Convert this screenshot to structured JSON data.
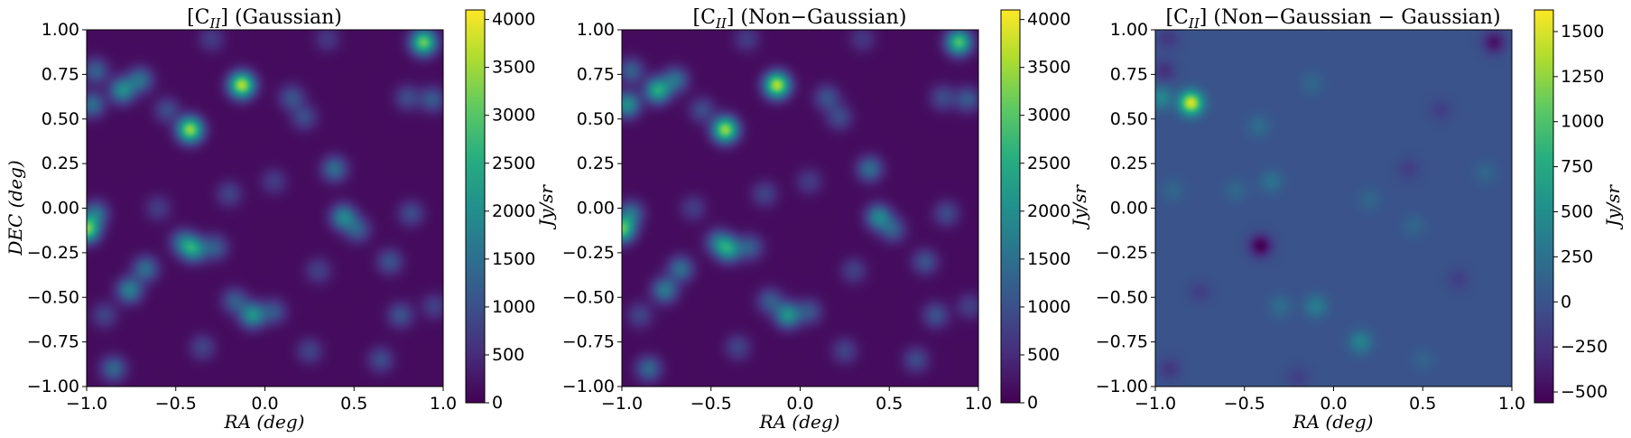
{
  "figure": {
    "panels": [
      {
        "title_main": "[C",
        "title_sub": "II",
        "title_rest": "] (Gaussian)",
        "xlabel": "RA (deg)",
        "ylabel": "DEC (deg)",
        "cbar_label": "Jy/sr"
      },
      {
        "title_main": "[C",
        "title_sub": "II",
        "title_rest": "] (Non−Gaussian)",
        "xlabel": "RA (deg)",
        "ylabel": "",
        "cbar_label": "Jy/sr"
      },
      {
        "title_main": "[C",
        "title_sub": "II",
        "title_rest": "] (Non−Gaussian − Gaussian)",
        "xlabel": "RA (deg)",
        "ylabel": "",
        "cbar_label": "Jy/sr"
      }
    ]
  },
  "chart_data": [
    {
      "type": "heatmap",
      "title": "[C_II] (Gaussian)",
      "xlabel": "RA (deg)",
      "ylabel": "DEC (deg)",
      "xlim": [
        -1.0,
        1.0
      ],
      "ylim": [
        -1.0,
        1.0
      ],
      "xticks": [
        -1.0,
        -0.5,
        0.0,
        0.5,
        1.0
      ],
      "xtick_labels": [
        "−1.0",
        "−0.5",
        "0.0",
        "0.5",
        "1.0"
      ],
      "yticks": [
        -1.0,
        -0.75,
        -0.5,
        -0.25,
        0.0,
        0.25,
        0.5,
        0.75,
        1.0
      ],
      "ytick_labels": [
        "−1.00",
        "−0.75",
        "−0.50",
        "−0.25",
        "0.00",
        "0.25",
        "0.50",
        "0.75",
        "1.00"
      ],
      "colormap": "viridis",
      "colorbar": {
        "label": "Jy/sr",
        "range": [
          0,
          4100
        ],
        "ticks": [
          0,
          500,
          1000,
          1500,
          2000,
          2500,
          3000,
          3500,
          4000
        ],
        "tick_labels": [
          "0",
          "500",
          "1000",
          "1500",
          "2000",
          "2500",
          "3000",
          "3500",
          "4000"
        ]
      },
      "background_value": 120,
      "blob_width": 0.05,
      "sources": [
        {
          "ra": -0.42,
          "dec": 0.44,
          "value": 3300
        },
        {
          "ra": -0.13,
          "dec": 0.69,
          "value": 3500
        },
        {
          "ra": 0.89,
          "dec": 0.93,
          "value": 3000
        },
        {
          "ra": -0.8,
          "dec": 0.66,
          "value": 1800
        },
        {
          "ra": -0.7,
          "dec": 0.72,
          "value": 1300
        },
        {
          "ra": -0.97,
          "dec": 0.58,
          "value": 1300
        },
        {
          "ra": -0.95,
          "dec": 0.77,
          "value": 1100
        },
        {
          "ra": -1.0,
          "dec": -0.12,
          "value": 3000
        },
        {
          "ra": -0.95,
          "dec": -0.03,
          "value": 1300
        },
        {
          "ra": -0.4,
          "dec": -0.23,
          "value": 1900
        },
        {
          "ra": -0.46,
          "dec": -0.19,
          "value": 1200
        },
        {
          "ra": -0.28,
          "dec": -0.22,
          "value": 1000
        },
        {
          "ra": -0.07,
          "dec": -0.6,
          "value": 1900
        },
        {
          "ra": -0.17,
          "dec": -0.52,
          "value": 1000
        },
        {
          "ra": 0.05,
          "dec": -0.58,
          "value": 900
        },
        {
          "ra": -0.76,
          "dec": -0.46,
          "value": 1600
        },
        {
          "ra": -0.67,
          "dec": -0.34,
          "value": 1300
        },
        {
          "ra": -0.85,
          "dec": -0.9,
          "value": 1200
        },
        {
          "ra": 0.44,
          "dec": -0.05,
          "value": 1700
        },
        {
          "ra": 0.39,
          "dec": 0.22,
          "value": 1300
        },
        {
          "ra": 0.52,
          "dec": -0.12,
          "value": 1000
        },
        {
          "ra": 0.94,
          "dec": 0.61,
          "value": 1000
        },
        {
          "ra": 0.8,
          "dec": 0.62,
          "value": 800
        },
        {
          "ra": 0.15,
          "dec": 0.62,
          "value": 900
        },
        {
          "ra": 0.22,
          "dec": 0.51,
          "value": 800
        },
        {
          "ra": -0.55,
          "dec": 0.55,
          "value": 800
        },
        {
          "ra": 0.7,
          "dec": -0.3,
          "value": 900
        },
        {
          "ra": 0.76,
          "dec": -0.6,
          "value": 900
        },
        {
          "ra": 0.82,
          "dec": -0.03,
          "value": 800
        },
        {
          "ra": 0.65,
          "dec": -0.85,
          "value": 800
        },
        {
          "ra": 0.25,
          "dec": -0.8,
          "value": 700
        },
        {
          "ra": -0.35,
          "dec": -0.78,
          "value": 700
        },
        {
          "ra": -0.2,
          "dec": 0.08,
          "value": 700
        },
        {
          "ra": 0.05,
          "dec": 0.15,
          "value": 600
        },
        {
          "ra": -0.9,
          "dec": -0.6,
          "value": 700
        },
        {
          "ra": -0.6,
          "dec": 0.0,
          "value": 600
        },
        {
          "ra": 0.3,
          "dec": -0.35,
          "value": 650
        },
        {
          "ra": 0.95,
          "dec": -0.55,
          "value": 650
        },
        {
          "ra": -0.3,
          "dec": 0.95,
          "value": 600
        },
        {
          "ra": 0.35,
          "dec": 0.95,
          "value": 550
        }
      ]
    },
    {
      "type": "heatmap",
      "title": "[C_II] (Non−Gaussian)",
      "xlabel": "RA (deg)",
      "ylabel": "",
      "xlim": [
        -1.0,
        1.0
      ],
      "ylim": [
        -1.0,
        1.0
      ],
      "xticks": [
        -1.0,
        -0.5,
        0.0,
        0.5,
        1.0
      ],
      "xtick_labels": [
        "−1.0",
        "−0.5",
        "0.0",
        "0.5",
        "1.0"
      ],
      "yticks": [
        -1.0,
        -0.75,
        -0.5,
        -0.25,
        0.0,
        0.25,
        0.5,
        0.75,
        1.0
      ],
      "ytick_labels": [
        "−1.00",
        "−0.75",
        "−0.50",
        "−0.25",
        "0.00",
        "0.25",
        "0.50",
        "0.75",
        "1.00"
      ],
      "colormap": "viridis",
      "colorbar": {
        "label": "Jy/sr",
        "range": [
          0,
          4100
        ],
        "ticks": [
          0,
          500,
          1000,
          1500,
          2000,
          2500,
          3000,
          3500,
          4000
        ],
        "tick_labels": [
          "0",
          "500",
          "1000",
          "1500",
          "2000",
          "2500",
          "3000",
          "3500",
          "4000"
        ]
      },
      "background_value": 120,
      "blob_width": 0.05,
      "sources": [
        {
          "ra": -0.42,
          "dec": 0.44,
          "value": 3300
        },
        {
          "ra": -0.13,
          "dec": 0.69,
          "value": 3500
        },
        {
          "ra": 0.89,
          "dec": 0.93,
          "value": 2800
        },
        {
          "ra": -0.8,
          "dec": 0.66,
          "value": 2300
        },
        {
          "ra": -0.7,
          "dec": 0.72,
          "value": 1300
        },
        {
          "ra": -0.97,
          "dec": 0.58,
          "value": 1900
        },
        {
          "ra": -0.95,
          "dec": 0.77,
          "value": 1100
        },
        {
          "ra": -1.0,
          "dec": -0.12,
          "value": 2800
        },
        {
          "ra": -0.95,
          "dec": -0.03,
          "value": 1300
        },
        {
          "ra": -0.4,
          "dec": -0.23,
          "value": 1900
        },
        {
          "ra": -0.46,
          "dec": -0.19,
          "value": 1200
        },
        {
          "ra": -0.28,
          "dec": -0.22,
          "value": 1000
        },
        {
          "ra": -0.07,
          "dec": -0.6,
          "value": 1900
        },
        {
          "ra": -0.17,
          "dec": -0.52,
          "value": 1000
        },
        {
          "ra": 0.05,
          "dec": -0.58,
          "value": 900
        },
        {
          "ra": -0.76,
          "dec": -0.46,
          "value": 1500
        },
        {
          "ra": -0.67,
          "dec": -0.34,
          "value": 1300
        },
        {
          "ra": -0.85,
          "dec": -0.9,
          "value": 1200
        },
        {
          "ra": 0.44,
          "dec": -0.05,
          "value": 1700
        },
        {
          "ra": 0.39,
          "dec": 0.22,
          "value": 1300
        },
        {
          "ra": 0.52,
          "dec": -0.12,
          "value": 1000
        },
        {
          "ra": 0.94,
          "dec": 0.61,
          "value": 1000
        },
        {
          "ra": 0.8,
          "dec": 0.62,
          "value": 800
        },
        {
          "ra": 0.15,
          "dec": 0.62,
          "value": 900
        },
        {
          "ra": 0.22,
          "dec": 0.51,
          "value": 800
        },
        {
          "ra": -0.55,
          "dec": 0.55,
          "value": 800
        },
        {
          "ra": 0.7,
          "dec": -0.3,
          "value": 900
        },
        {
          "ra": 0.76,
          "dec": -0.6,
          "value": 900
        },
        {
          "ra": 0.82,
          "dec": -0.03,
          "value": 800
        },
        {
          "ra": 0.65,
          "dec": -0.85,
          "value": 800
        },
        {
          "ra": 0.25,
          "dec": -0.8,
          "value": 700
        },
        {
          "ra": -0.35,
          "dec": -0.78,
          "value": 700
        },
        {
          "ra": -0.2,
          "dec": 0.08,
          "value": 700
        },
        {
          "ra": 0.05,
          "dec": 0.15,
          "value": 600
        },
        {
          "ra": -0.9,
          "dec": -0.6,
          "value": 700
        },
        {
          "ra": -0.6,
          "dec": 0.0,
          "value": 600
        },
        {
          "ra": 0.3,
          "dec": -0.35,
          "value": 650
        },
        {
          "ra": 0.95,
          "dec": -0.55,
          "value": 650
        },
        {
          "ra": -0.3,
          "dec": 0.95,
          "value": 600
        },
        {
          "ra": 0.35,
          "dec": 0.95,
          "value": 550
        }
      ]
    },
    {
      "type": "heatmap",
      "title": "[C_II] (Non−Gaussian − Gaussian)",
      "xlabel": "RA (deg)",
      "ylabel": "",
      "xlim": [
        -1.0,
        1.0
      ],
      "ylim": [
        -1.0,
        1.0
      ],
      "xticks": [
        -1.0,
        -0.5,
        0.0,
        0.5,
        1.0
      ],
      "xtick_labels": [
        "−1.0",
        "−0.5",
        "0.0",
        "0.5",
        "1.0"
      ],
      "yticks": [
        -1.0,
        -0.75,
        -0.5,
        -0.25,
        0.0,
        0.25,
        0.5,
        0.75,
        1.0
      ],
      "ytick_labels": [
        "−1.00",
        "−0.75",
        "−0.50",
        "−0.25",
        "0.00",
        "0.25",
        "0.50",
        "0.75",
        "1.00"
      ],
      "colormap": "viridis",
      "colorbar": {
        "label": "Jy/sr",
        "range": [
          -560,
          1620
        ],
        "ticks": [
          -500,
          -250,
          0,
          250,
          500,
          750,
          1000,
          1250,
          1500
        ],
        "tick_labels": [
          "−500",
          "−250",
          "0",
          "250",
          "500",
          "750",
          "1000",
          "1250",
          "1500"
        ]
      },
      "background_value": 0,
      "blob_width": 0.045,
      "sources": [
        {
          "ra": -0.8,
          "dec": 0.59,
          "value": 1500
        },
        {
          "ra": -0.97,
          "dec": 0.62,
          "value": 450
        },
        {
          "ra": -0.41,
          "dec": -0.21,
          "value": -560
        },
        {
          "ra": 0.9,
          "dec": 0.93,
          "value": -450
        },
        {
          "ra": -0.95,
          "dec": 0.77,
          "value": -250
        },
        {
          "ra": -0.93,
          "dec": 0.95,
          "value": -200
        },
        {
          "ra": -0.92,
          "dec": -0.9,
          "value": -200
        },
        {
          "ra": -0.75,
          "dec": -0.47,
          "value": -150
        },
        {
          "ra": -0.1,
          "dec": -0.55,
          "value": 350
        },
        {
          "ra": 0.15,
          "dec": -0.75,
          "value": 400
        },
        {
          "ra": -0.42,
          "dec": 0.46,
          "value": 200
        },
        {
          "ra": -0.35,
          "dec": 0.15,
          "value": 250
        },
        {
          "ra": -0.12,
          "dec": 0.7,
          "value": 150
        },
        {
          "ra": 0.45,
          "dec": -0.1,
          "value": 150
        },
        {
          "ra": -0.3,
          "dec": -0.55,
          "value": 200
        },
        {
          "ra": 0.6,
          "dec": 0.55,
          "value": -150
        },
        {
          "ra": 0.42,
          "dec": 0.22,
          "value": -150
        },
        {
          "ra": -0.55,
          "dec": 0.1,
          "value": 150
        },
        {
          "ra": 0.2,
          "dec": 0.05,
          "value": 150
        },
        {
          "ra": 0.7,
          "dec": -0.4,
          "value": -150
        },
        {
          "ra": 0.85,
          "dec": 0.2,
          "value": 150
        },
        {
          "ra": -0.2,
          "dec": -0.95,
          "value": -150
        },
        {
          "ra": 0.5,
          "dec": -0.85,
          "value": 120
        },
        {
          "ra": -0.9,
          "dec": 0.1,
          "value": 150
        }
      ]
    }
  ]
}
